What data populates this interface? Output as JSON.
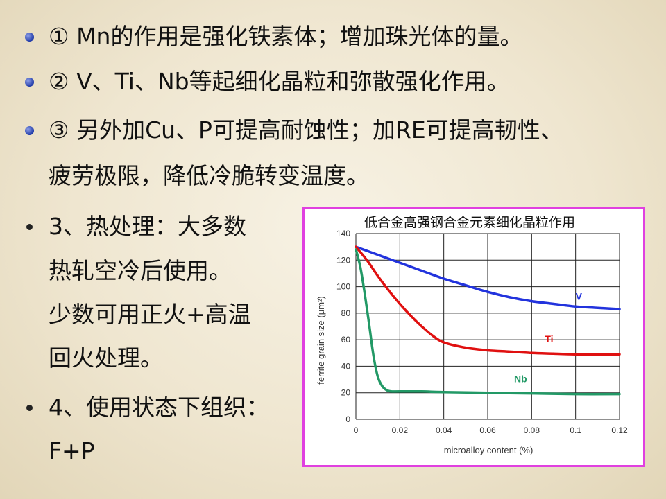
{
  "bullets": [
    {
      "line1": "① Mn的作用是强化铁素体；增加珠光体的量。"
    },
    {
      "line1": "② V、Ti、Nb等起细化晶粒和弥散强化作用。"
    },
    {
      "line1": "③ 另外加Cu、P可提高耐蚀性；加RE可提高韧性、",
      "line2": "疲劳极限，降低冷脆转变温度。"
    }
  ],
  "section3": {
    "line1": "3、热处理：大多数",
    "line2": "热轧空冷后使用。",
    "line3": "少数可用正火+高温",
    "line4": "回火处理。"
  },
  "section4": {
    "line1": "4、使用状态下组织：",
    "line2": "F+P"
  },
  "chart_data": {
    "type": "line",
    "title": "低合金高强钢合金元素细化晶粒作用",
    "xlabel": "microalloy content (%)",
    "ylabel": "ferrite grain size (μm²)",
    "xlim": [
      0,
      0.12
    ],
    "ylim": [
      0,
      140
    ],
    "xticks": [
      "0",
      "0.02",
      "0.04",
      "0.06",
      "0.08",
      "0.1",
      "0.12"
    ],
    "yticks": [
      "0",
      "20",
      "40",
      "60",
      "80",
      "100",
      "120",
      "140"
    ],
    "grid": true,
    "series": [
      {
        "name": "V",
        "color": "#2233dd",
        "x": [
          0,
          0.01,
          0.02,
          0.03,
          0.04,
          0.05,
          0.06,
          0.07,
          0.08,
          0.09,
          0.1,
          0.11,
          0.12
        ],
        "y": [
          130,
          124,
          118,
          112,
          106,
          101,
          96,
          92,
          89,
          87,
          85,
          84,
          83
        ]
      },
      {
        "name": "Ti",
        "color": "#e01010",
        "x": [
          0,
          0.005,
          0.01,
          0.015,
          0.02,
          0.025,
          0.03,
          0.035,
          0.04,
          0.05,
          0.06,
          0.07,
          0.08,
          0.09,
          0.1,
          0.12
        ],
        "y": [
          130,
          120,
          108,
          97,
          87,
          78,
          70,
          63,
          58,
          54,
          52,
          51,
          50,
          49.5,
          49,
          49
        ]
      },
      {
        "name": "Nb",
        "color": "#229966",
        "x": [
          0,
          0.002,
          0.004,
          0.006,
          0.008,
          0.01,
          0.012,
          0.014,
          0.016,
          0.02,
          0.03,
          0.04,
          0.06,
          0.08,
          0.1,
          0.12
        ],
        "y": [
          128,
          115,
          95,
          72,
          48,
          32,
          25,
          22,
          21,
          21,
          21,
          20.5,
          20,
          19.5,
          19,
          19
        ]
      }
    ]
  }
}
